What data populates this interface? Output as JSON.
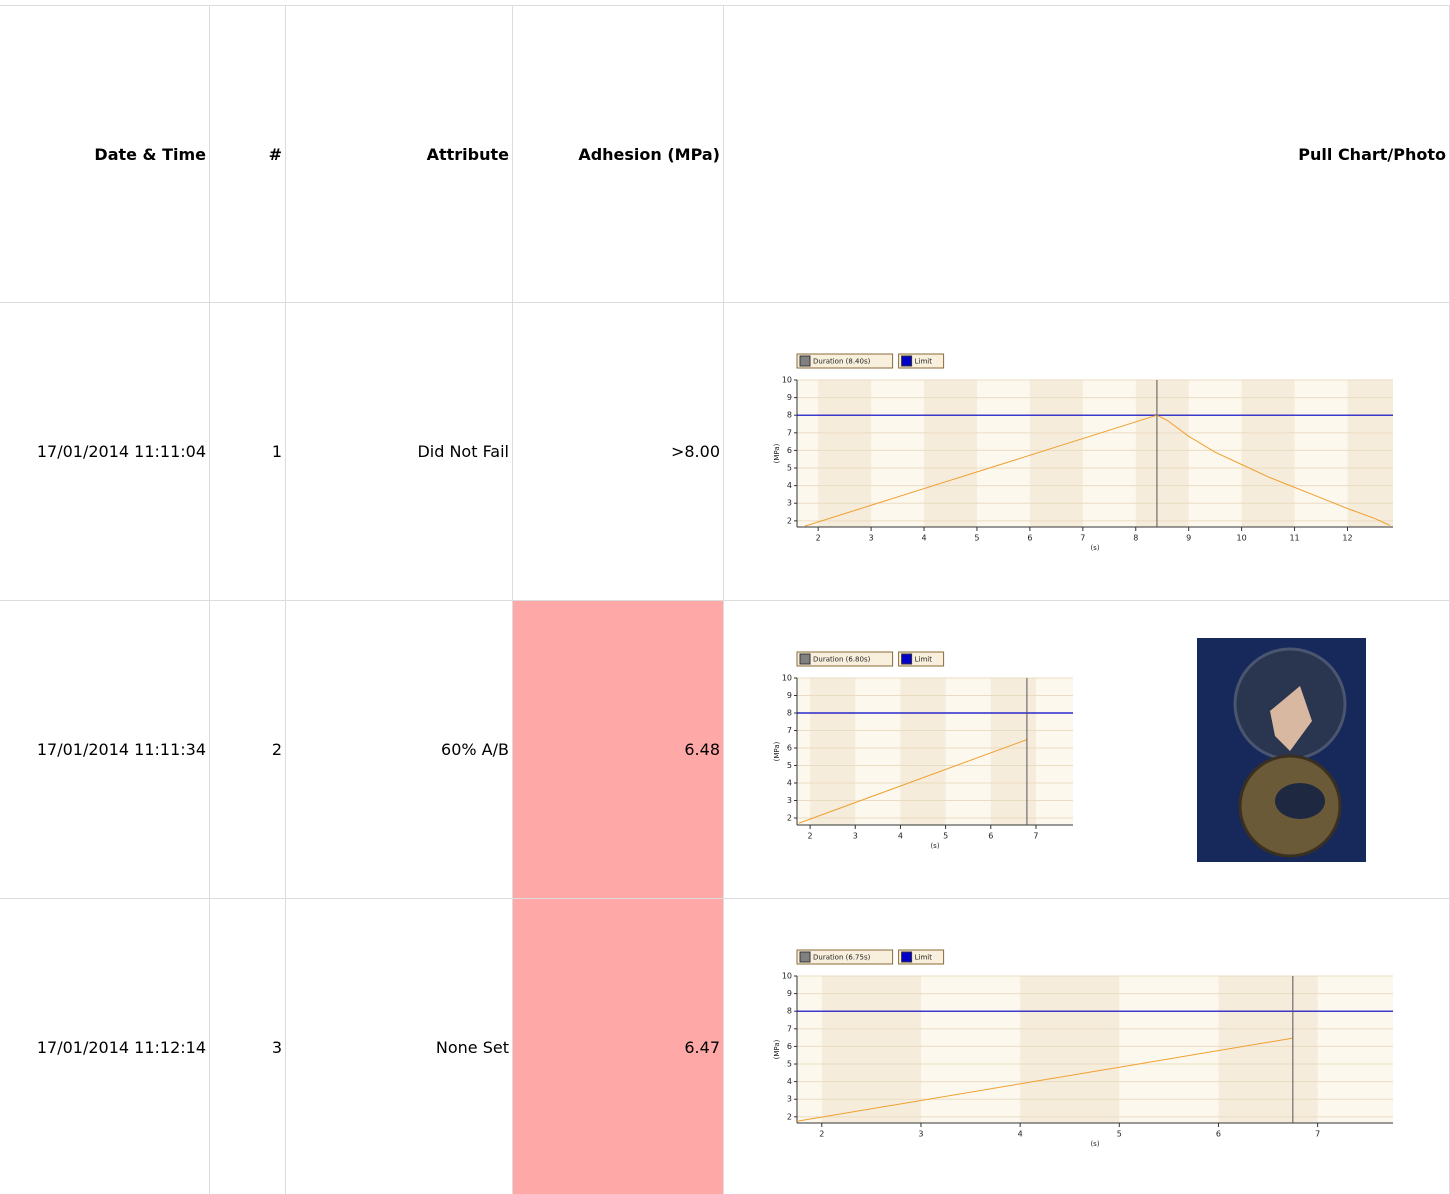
{
  "table": {
    "headers": [
      "Date & Time",
      "#",
      "Attribute",
      "Adhesion (MPa)",
      "Pull Chart/Photo"
    ],
    "highlight_color": "#ffa8a8",
    "rows": [
      {
        "date": "17/01/2014 11:11:04",
        "number": 1,
        "attribute": "Did Not Fail",
        "adhesion": ">8.00",
        "failed": false,
        "has_photo": false,
        "chart": {
          "legend": [
            {
              "name": "Duration (8.40s)",
              "color": "#808080"
            },
            {
              "name": "Limit",
              "color": "#0000c8"
            }
          ],
          "y_label": "(MPa)",
          "x_label": "(s)",
          "line_color": "#f0a030",
          "cursor_color": "#555555",
          "xlim": [
            1.6,
            12.86
          ],
          "ylim": [
            1.65,
            10
          ],
          "xticks": [
            2,
            3,
            4,
            5,
            6,
            7,
            8,
            9,
            10,
            11,
            12
          ],
          "yticks": [
            2,
            3,
            4,
            5,
            6,
            7,
            8,
            9,
            10
          ],
          "limit": 8,
          "duration": 8.4,
          "x": [
            1.75,
            8.4,
            8.6,
            9,
            9.5,
            10,
            10.5,
            11,
            11.5,
            12,
            12.5,
            12.8
          ],
          "y": [
            1.7,
            8.0,
            7.7,
            6.8,
            5.9,
            5.2,
            4.5,
            3.9,
            3.3,
            2.7,
            2.15,
            1.75
          ]
        }
      },
      {
        "date": "17/01/2014 11:11:34",
        "number": 2,
        "attribute": "60% A/B",
        "adhesion": 6.48,
        "failed": true,
        "has_photo": true,
        "chart": {
          "legend": [
            {
              "name": "Duration (6.80s)",
              "color": "#808080"
            },
            {
              "name": "Limit",
              "color": "#0000c8"
            }
          ],
          "y_label": "(MPa)",
          "x_label": "(s)",
          "line_color": "#f0a030",
          "cursor_color": "#555555",
          "xlim": [
            1.71,
            7.82
          ],
          "ylim": [
            1.6,
            10
          ],
          "xticks": [
            2,
            3,
            4,
            5,
            6,
            7
          ],
          "yticks": [
            2,
            3,
            4,
            5,
            6,
            7,
            8,
            9,
            10
          ],
          "limit": 8,
          "duration": 6.8,
          "x": [
            1.75,
            6.8
          ],
          "y": [
            1.7,
            6.48
          ]
        }
      },
      {
        "date": "17/01/2014 11:12:14",
        "number": 3,
        "attribute": "None Set",
        "adhesion": 6.47,
        "failed": true,
        "has_photo": false,
        "chart": {
          "legend": [
            {
              "name": "Duration (6.75s)",
              "color": "#808080"
            },
            {
              "name": "Limit",
              "color": "#0000c8"
            }
          ],
          "y_label": "(MPa)",
          "x_label": "(s)",
          "line_color": "#f0a030",
          "cursor_color": "#555555",
          "xlim": [
            1.75,
            7.76
          ],
          "ylim": [
            1.65,
            10
          ],
          "xticks": [
            2,
            3,
            4,
            5,
            6,
            7
          ],
          "yticks": [
            2,
            3,
            4,
            5,
            6,
            7,
            8,
            9,
            10
          ],
          "limit": 8,
          "duration": 6.75,
          "x": [
            1.75,
            6.75
          ],
          "y": [
            1.75,
            6.47
          ]
        }
      }
    ]
  }
}
